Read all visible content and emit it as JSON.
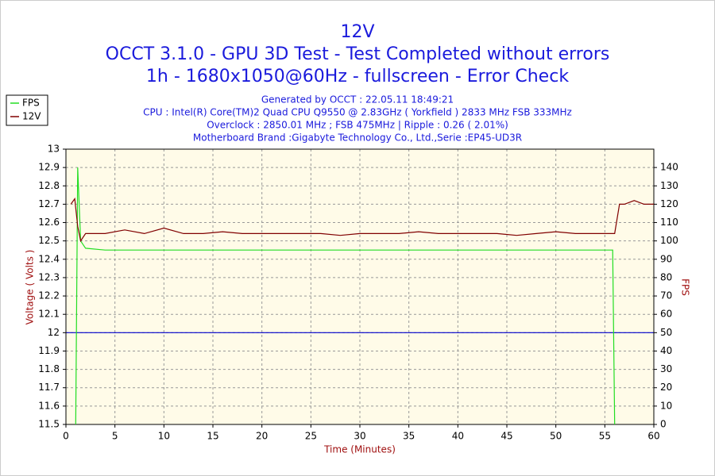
{
  "chart_data": {
    "type": "line",
    "title": "12V",
    "subtitle": [
      "OCCT 3.1.0 - GPU 3D Test - Test Completed without errors",
      "1h - 1680x1050@60Hz - fullscreen - Error Check"
    ],
    "info": [
      "Generated by OCCT : 22.05.11 18:49:21",
      "CPU : Intel(R) Core(TM)2 Quad CPU Q9550 @ 2.83GHz ( Yorkfield ) 2833 MHz FSB 333MHz",
      "Overclock : 2850.01 MHz ; FSB 475MHz | Ripple : 0.26 ( 2.01%)",
      "Motherboard Brand :Gigabyte Technology Co., Ltd.,Serie :EP45-UD3R"
    ],
    "x_label": "Time (Minutes)",
    "y_label": "Voltage ( Volts )",
    "y2_label": "FPS",
    "x": [
      0.5,
      0.9,
      1.0,
      1.2,
      1.5,
      2,
      4,
      6,
      8,
      10,
      12,
      14,
      16,
      18,
      20,
      22,
      24,
      26,
      28,
      30,
      32,
      34,
      36,
      38,
      40,
      42,
      44,
      46,
      48,
      50,
      52,
      54,
      55.8,
      56,
      56.5,
      57,
      58,
      59,
      60
    ],
    "series": [
      {
        "name": "FPS",
        "color": "#22dd22",
        "axis": "y2",
        "values": [
          null,
          null,
          0,
          140,
          100,
          96,
          95,
          95,
          95,
          95,
          95,
          95,
          95,
          95,
          95,
          95,
          95,
          95,
          95,
          95,
          95,
          95,
          95,
          95,
          95,
          95,
          95,
          95,
          95,
          95,
          95,
          95,
          95,
          0,
          null,
          null,
          null,
          null,
          null
        ]
      },
      {
        "name": "12V",
        "color": "#800000",
        "values": [
          12.7,
          12.73,
          12.68,
          12.58,
          12.5,
          12.54,
          12.54,
          12.56,
          12.54,
          12.57,
          12.54,
          12.54,
          12.55,
          12.54,
          12.54,
          12.54,
          12.54,
          12.54,
          12.53,
          12.54,
          12.54,
          12.54,
          12.55,
          12.54,
          12.54,
          12.54,
          12.54,
          12.53,
          12.54,
          12.55,
          12.54,
          12.54,
          12.54,
          12.54,
          12.7,
          12.7,
          12.72,
          12.7,
          12.7
        ]
      }
    ],
    "reference_line": {
      "value": 12,
      "color": "#0000cc"
    },
    "xlim": [
      0,
      60
    ],
    "xticks": [
      0,
      5,
      10,
      15,
      20,
      25,
      30,
      35,
      40,
      45,
      50,
      55,
      60
    ],
    "ylim": [
      11.5,
      13
    ],
    "yticks": [
      11.5,
      11.6,
      11.7,
      11.8,
      11.9,
      12,
      12.1,
      12.2,
      12.3,
      12.4,
      12.5,
      12.6,
      12.7,
      12.8,
      12.9,
      13
    ],
    "y2lim": [
      0,
      150
    ],
    "y2ticks": [
      0,
      10,
      20,
      30,
      40,
      50,
      60,
      70,
      80,
      90,
      100,
      110,
      120,
      130,
      140
    ],
    "grid": true,
    "legend": "top-left"
  }
}
